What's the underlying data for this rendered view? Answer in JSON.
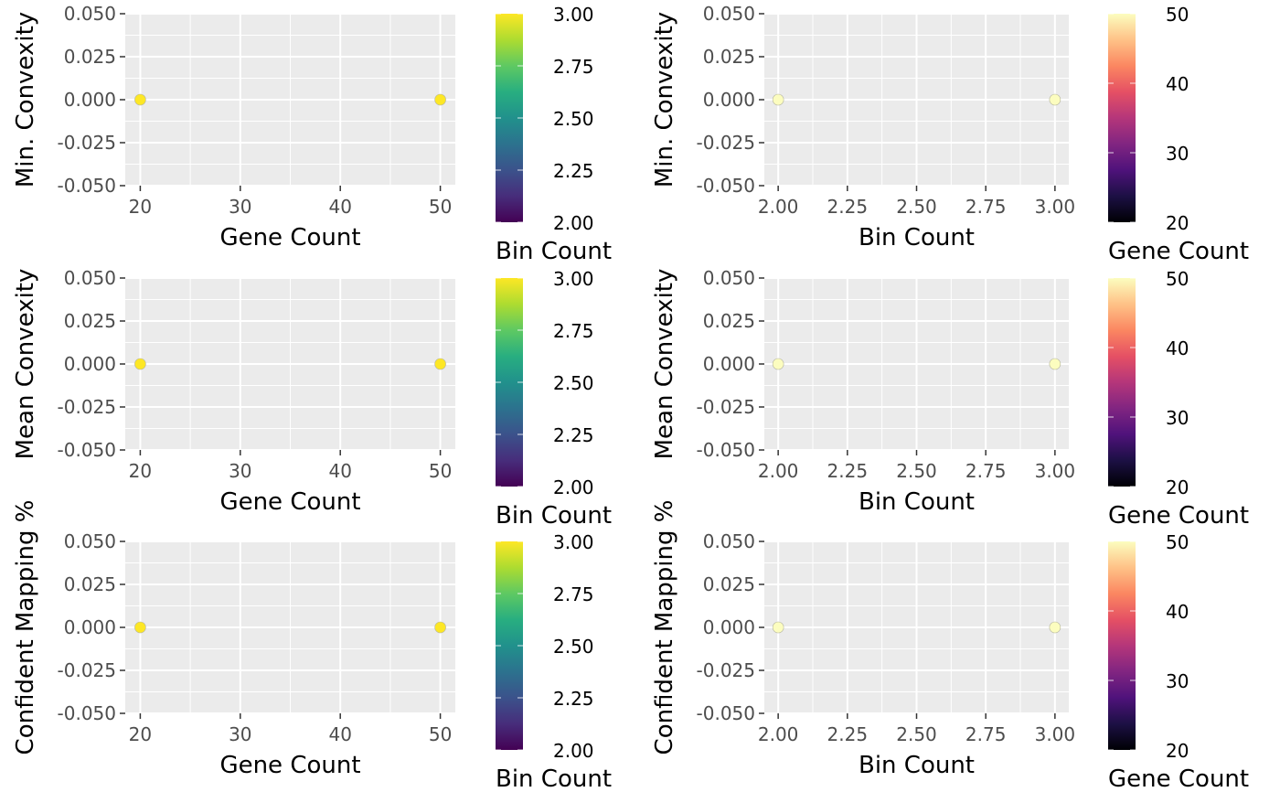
{
  "panel_background": "#ebebeb",
  "grid_color": "#ffffff",
  "chart_data": [
    {
      "type": "scatter",
      "xlabel": "Gene Count",
      "ylabel": "Min. Convexity",
      "xlim": [
        18.5,
        51.5
      ],
      "ylim": [
        -0.05,
        0.05
      ],
      "x_ticks": [
        20,
        30,
        40,
        50
      ],
      "x_tick_labels": [
        "20",
        "30",
        "40",
        "50"
      ],
      "y_ticks": [
        0.05,
        0.025,
        0,
        -0.025,
        -0.05
      ],
      "y_tick_labels": [
        "0.050",
        "0.025",
        "0.000",
        "-0.025",
        "-0.050"
      ],
      "points": [
        {
          "x": 20,
          "y": 0,
          "color": "#FDE725"
        },
        {
          "x": 50,
          "y": 0,
          "color": "#FDE725"
        }
      ],
      "legend": {
        "title": "Bin Count",
        "colorscale": "viridis",
        "range": [
          2,
          3
        ],
        "ticks": [
          3,
          2.75,
          2.5,
          2.25,
          2
        ],
        "tick_labels": [
          "3.00",
          "2.75",
          "2.50",
          "2.25",
          "2.00"
        ]
      }
    },
    {
      "type": "scatter",
      "xlabel": "Bin Count",
      "ylabel": "Min. Convexity",
      "xlim": [
        1.95,
        3.05
      ],
      "ylim": [
        -0.05,
        0.05
      ],
      "x_ticks": [
        2,
        2.25,
        2.5,
        2.75,
        3
      ],
      "x_tick_labels": [
        "2.00",
        "2.25",
        "2.50",
        "2.75",
        "3.00"
      ],
      "y_ticks": [
        0.05,
        0.025,
        0,
        -0.025,
        -0.05
      ],
      "y_tick_labels": [
        "0.050",
        "0.025",
        "0.000",
        "-0.025",
        "-0.050"
      ],
      "points": [
        {
          "x": 2,
          "y": 0,
          "color": "#FCFDBF"
        },
        {
          "x": 3,
          "y": 0,
          "color": "#FCFDBF"
        }
      ],
      "legend": {
        "title": "Gene Count",
        "colorscale": "magma",
        "range": [
          20,
          50
        ],
        "ticks": [
          50,
          40,
          30,
          20
        ],
        "tick_labels": [
          "50",
          "40",
          "30",
          "20"
        ]
      }
    },
    {
      "type": "scatter",
      "xlabel": "Gene Count",
      "ylabel": "Mean Convexity",
      "xlim": [
        18.5,
        51.5
      ],
      "ylim": [
        -0.05,
        0.05
      ],
      "x_ticks": [
        20,
        30,
        40,
        50
      ],
      "x_tick_labels": [
        "20",
        "30",
        "40",
        "50"
      ],
      "y_ticks": [
        0.05,
        0.025,
        0,
        -0.025,
        -0.05
      ],
      "y_tick_labels": [
        "0.050",
        "0.025",
        "0.000",
        "-0.025",
        "-0.050"
      ],
      "points": [
        {
          "x": 20,
          "y": 0,
          "color": "#FDE725"
        },
        {
          "x": 50,
          "y": 0,
          "color": "#FDE725"
        }
      ],
      "legend": {
        "title": "Bin Count",
        "colorscale": "viridis",
        "range": [
          2,
          3
        ],
        "ticks": [
          3,
          2.75,
          2.5,
          2.25,
          2
        ],
        "tick_labels": [
          "3.00",
          "2.75",
          "2.50",
          "2.25",
          "2.00"
        ]
      }
    },
    {
      "type": "scatter",
      "xlabel": "Bin Count",
      "ylabel": "Mean Convexity",
      "xlim": [
        1.95,
        3.05
      ],
      "ylim": [
        -0.05,
        0.05
      ],
      "x_ticks": [
        2,
        2.25,
        2.5,
        2.75,
        3
      ],
      "x_tick_labels": [
        "2.00",
        "2.25",
        "2.50",
        "2.75",
        "3.00"
      ],
      "y_ticks": [
        0.05,
        0.025,
        0,
        -0.025,
        -0.05
      ],
      "y_tick_labels": [
        "0.050",
        "0.025",
        "0.000",
        "-0.025",
        "-0.050"
      ],
      "points": [
        {
          "x": 2,
          "y": 0,
          "color": "#FCFDBF"
        },
        {
          "x": 3,
          "y": 0,
          "color": "#FCFDBF"
        }
      ],
      "legend": {
        "title": "Gene Count",
        "colorscale": "magma",
        "range": [
          20,
          50
        ],
        "ticks": [
          50,
          40,
          30,
          20
        ],
        "tick_labels": [
          "50",
          "40",
          "30",
          "20"
        ]
      }
    },
    {
      "type": "scatter",
      "xlabel": "Gene Count",
      "ylabel": "Confident Mapping %",
      "xlim": [
        18.5,
        51.5
      ],
      "ylim": [
        -0.05,
        0.05
      ],
      "x_ticks": [
        20,
        30,
        40,
        50
      ],
      "x_tick_labels": [
        "20",
        "30",
        "40",
        "50"
      ],
      "y_ticks": [
        0.05,
        0.025,
        0,
        -0.025,
        -0.05
      ],
      "y_tick_labels": [
        "0.050",
        "0.025",
        "0.000",
        "-0.025",
        "-0.050"
      ],
      "points": [
        {
          "x": 20,
          "y": 0,
          "color": "#FDE725"
        },
        {
          "x": 50,
          "y": 0,
          "color": "#FDE725"
        }
      ],
      "legend": {
        "title": "Bin Count",
        "colorscale": "viridis",
        "range": [
          2,
          3
        ],
        "ticks": [
          3,
          2.75,
          2.5,
          2.25,
          2
        ],
        "tick_labels": [
          "3.00",
          "2.75",
          "2.50",
          "2.25",
          "2.00"
        ]
      }
    },
    {
      "type": "scatter",
      "xlabel": "Bin Count",
      "ylabel": "Confident Mapping %",
      "xlim": [
        1.95,
        3.05
      ],
      "ylim": [
        -0.05,
        0.05
      ],
      "x_ticks": [
        2,
        2.25,
        2.5,
        2.75,
        3
      ],
      "x_tick_labels": [
        "2.00",
        "2.25",
        "2.50",
        "2.75",
        "3.00"
      ],
      "y_ticks": [
        0.05,
        0.025,
        0,
        -0.025,
        -0.05
      ],
      "y_tick_labels": [
        "0.050",
        "0.025",
        "0.000",
        "-0.025",
        "-0.050"
      ],
      "points": [
        {
          "x": 2,
          "y": 0,
          "color": "#FCFDBF"
        },
        {
          "x": 3,
          "y": 0,
          "color": "#FCFDBF"
        }
      ],
      "legend": {
        "title": "Gene Count",
        "colorscale": "magma",
        "range": [
          20,
          50
        ],
        "ticks": [
          50,
          40,
          30,
          20
        ],
        "tick_labels": [
          "50",
          "40",
          "30",
          "20"
        ]
      }
    }
  ]
}
